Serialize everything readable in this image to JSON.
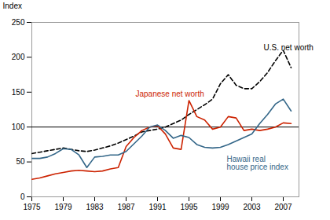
{
  "chart_data": {
    "type": "line",
    "x": [
      1975,
      1976,
      1977,
      1978,
      1979,
      1980,
      1981,
      1982,
      1983,
      1984,
      1985,
      1986,
      1987,
      1988,
      1989,
      1990,
      1991,
      1992,
      1993,
      1994,
      1995,
      1996,
      1997,
      1998,
      1999,
      2000,
      2001,
      2002,
      2003,
      2004,
      2005,
      2006,
      2007,
      2008
    ],
    "series": [
      {
        "name": "U.S. net worth",
        "color": "#000000",
        "line_style": "dashed",
        "values": [
          62,
          64,
          66,
          68,
          70,
          68,
          66,
          65,
          67,
          70,
          73,
          77,
          82,
          87,
          93,
          95,
          97,
          100,
          105,
          110,
          118,
          125,
          132,
          140,
          162,
          175,
          160,
          155,
          155,
          165,
          178,
          195,
          210,
          185
        ]
      },
      {
        "name": "Japanese net worth",
        "color": "#cc2200",
        "line_style": "solid",
        "values": [
          25,
          27,
          30,
          33,
          35,
          37,
          38,
          37,
          36,
          37,
          40,
          42,
          72,
          85,
          95,
          100,
          102,
          90,
          70,
          68,
          138,
          115,
          110,
          97,
          100,
          115,
          113,
          95,
          97,
          95,
          97,
          100,
          106,
          105
        ]
      },
      {
        "name": "Hawaii real\nhouse price index",
        "color": "#336688",
        "line_style": "solid",
        "values": [
          55,
          55,
          57,
          62,
          69,
          68,
          60,
          42,
          57,
          58,
          60,
          60,
          65,
          76,
          87,
          100,
          103,
          95,
          84,
          88,
          85,
          75,
          71,
          70,
          71,
          75,
          80,
          85,
          90,
          105,
          118,
          133,
          140,
          123
        ]
      }
    ],
    "ylabel": "Index",
    "xlim": [
      1975,
      2009
    ],
    "xticks": [
      1975,
      1979,
      1983,
      1987,
      1991,
      1995,
      1999,
      2003,
      2007
    ],
    "ylim": [
      0,
      250
    ],
    "yticks": [
      0,
      50,
      100,
      150,
      200,
      250
    ],
    "hline": 100,
    "grid": false,
    "annotations": [
      {
        "text": "U.S. net worth",
        "x": 2004.5,
        "y": 218,
        "color": "#000000"
      },
      {
        "text": "Japanese net worth",
        "x": 1988.2,
        "y": 152,
        "color": "#cc2200"
      },
      {
        "text": "Hawaii real\nhouse price index",
        "x": 1999.8,
        "y": 58,
        "color": "#336688"
      }
    ]
  }
}
